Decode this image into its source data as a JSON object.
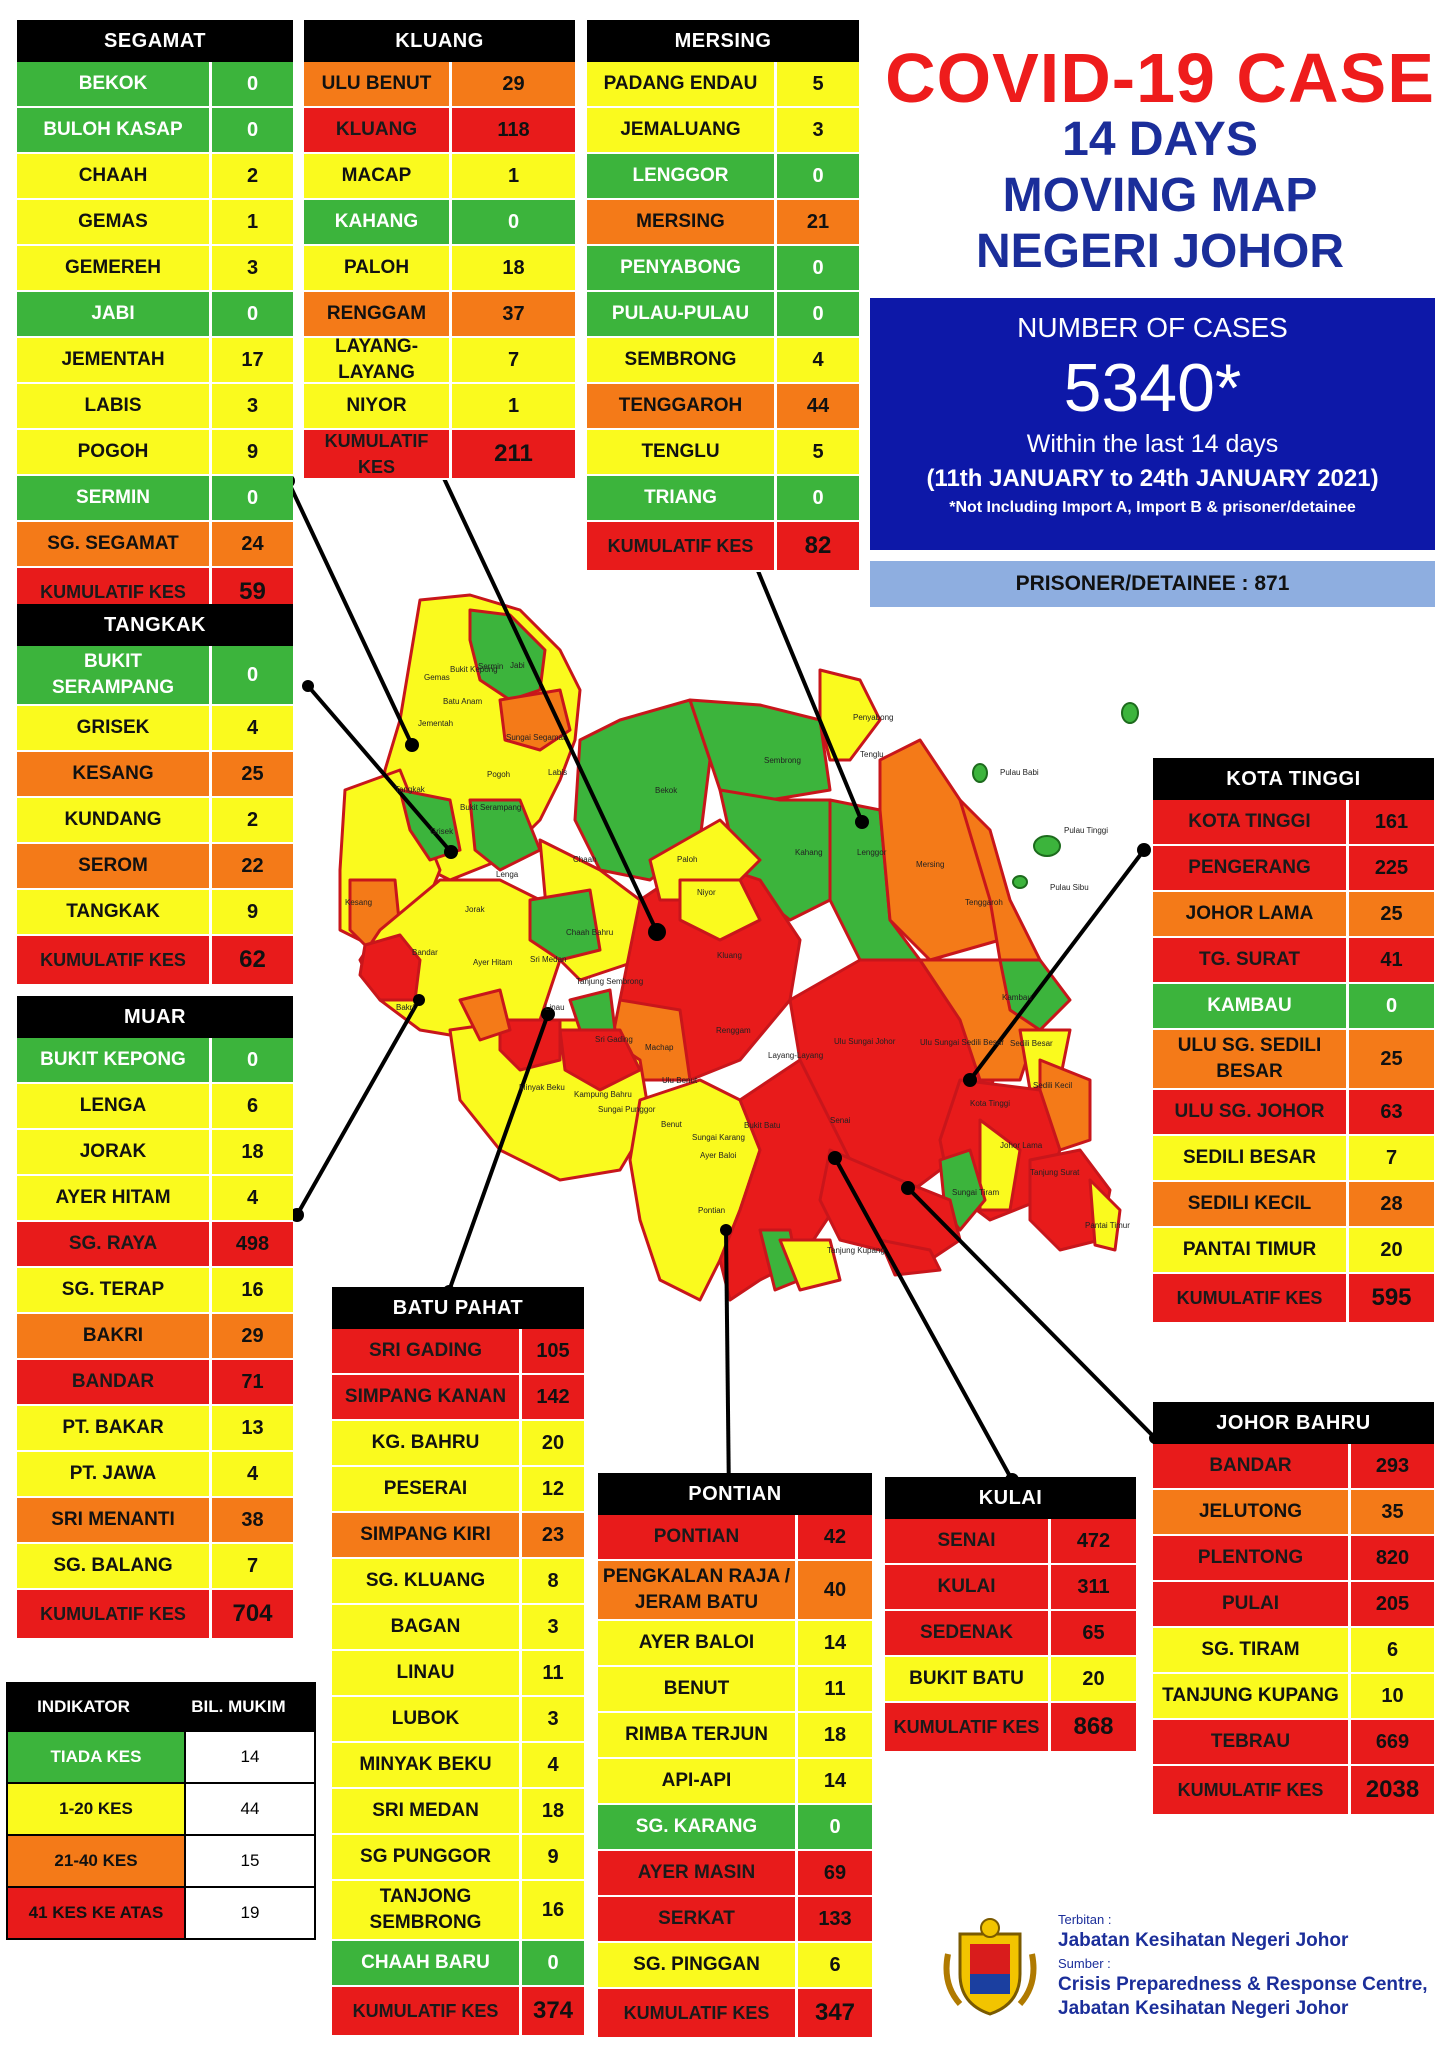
{
  "title_line1": "COVID-19 CASE",
  "title_line2": "14 DAYS",
  "title_line3": "MOVING MAP",
  "title_line4": "NEGERI JOHOR",
  "cases": {
    "label": "NUMBER OF CASES",
    "value": "5340*",
    "period": "Within the last 14 days",
    "range": "(11th JANUARY to 24th JANUARY 2021)",
    "note": "*Not Including Import A, Import B & prisoner/detainee"
  },
  "prisoner": "PRISONER/DETAINEE : 871",
  "colors": {
    "green": "#3cb43c",
    "yellow": "#fafa1e",
    "orange": "#f47a18",
    "red": "#e81b1b"
  },
  "districts": {
    "segamat": {
      "name": "SEGAMAT",
      "rows": [
        {
          "n": "BEKOK",
          "v": "0",
          "c": "green"
        },
        {
          "n": "BULOH KASAP",
          "v": "0",
          "c": "green"
        },
        {
          "n": "CHAAH",
          "v": "2",
          "c": "yellow"
        },
        {
          "n": "GEMAS",
          "v": "1",
          "c": "yellow"
        },
        {
          "n": "GEMEREH",
          "v": "3",
          "c": "yellow"
        },
        {
          "n": "JABI",
          "v": "0",
          "c": "green"
        },
        {
          "n": "JEMENTAH",
          "v": "17",
          "c": "yellow"
        },
        {
          "n": "LABIS",
          "v": "3",
          "c": "yellow"
        },
        {
          "n": "POGOH",
          "v": "9",
          "c": "yellow"
        },
        {
          "n": "SERMIN",
          "v": "0",
          "c": "green"
        },
        {
          "n": "SG. SEGAMAT",
          "v": "24",
          "c": "orange"
        }
      ],
      "total_label": "KUMULATIF KES",
      "total": "59"
    },
    "kluang": {
      "name": "KLUANG",
      "rows": [
        {
          "n": "ULU BENUT",
          "v": "29",
          "c": "orange"
        },
        {
          "n": "KLUANG",
          "v": "118",
          "c": "red"
        },
        {
          "n": "MACAP",
          "v": "1",
          "c": "yellow"
        },
        {
          "n": "KAHANG",
          "v": "0",
          "c": "green"
        },
        {
          "n": "PALOH",
          "v": "18",
          "c": "yellow"
        },
        {
          "n": "RENGGAM",
          "v": "37",
          "c": "orange"
        },
        {
          "n": "LAYANG-LAYANG",
          "v": "7",
          "c": "yellow"
        },
        {
          "n": "NIYOR",
          "v": "1",
          "c": "yellow"
        }
      ],
      "total_label": "KUMULATIF KES",
      "total": "211"
    },
    "mersing": {
      "name": "MERSING",
      "rows": [
        {
          "n": "PADANG ENDAU",
          "v": "5",
          "c": "yellow"
        },
        {
          "n": "JEMALUANG",
          "v": "3",
          "c": "yellow"
        },
        {
          "n": "LENGGOR",
          "v": "0",
          "c": "green"
        },
        {
          "n": "MERSING",
          "v": "21",
          "c": "orange"
        },
        {
          "n": "PENYABONG",
          "v": "0",
          "c": "green"
        },
        {
          "n": "PULAU-PULAU",
          "v": "0",
          "c": "green"
        },
        {
          "n": "SEMBRONG",
          "v": "4",
          "c": "yellow"
        },
        {
          "n": "TENGGAROH",
          "v": "44",
          "c": "orange"
        },
        {
          "n": "TENGLU",
          "v": "5",
          "c": "yellow"
        },
        {
          "n": "TRIANG",
          "v": "0",
          "c": "green"
        }
      ],
      "total_label": "KUMULATIF KES",
      "total": "82"
    },
    "tangkak": {
      "name": "TANGKAK",
      "rows": [
        {
          "n": "BUKIT SERAMPANG",
          "v": "0",
          "c": "green"
        },
        {
          "n": "GRISEK",
          "v": "4",
          "c": "yellow"
        },
        {
          "n": "KESANG",
          "v": "25",
          "c": "orange"
        },
        {
          "n": "KUNDANG",
          "v": "2",
          "c": "yellow"
        },
        {
          "n": "SEROM",
          "v": "22",
          "c": "orange"
        },
        {
          "n": "TANGKAK",
          "v": "9",
          "c": "yellow"
        }
      ],
      "total_label": "KUMULATIF KES",
      "total": "62"
    },
    "muar": {
      "name": "MUAR",
      "rows": [
        {
          "n": "BUKIT KEPONG",
          "v": "0",
          "c": "green"
        },
        {
          "n": "LENGA",
          "v": "6",
          "c": "yellow"
        },
        {
          "n": "JORAK",
          "v": "18",
          "c": "yellow"
        },
        {
          "n": "AYER HITAM",
          "v": "4",
          "c": "yellow"
        },
        {
          "n": "SG. RAYA",
          "v": "498",
          "c": "red"
        },
        {
          "n": "SG. TERAP",
          "v": "16",
          "c": "yellow"
        },
        {
          "n": "BAKRI",
          "v": "29",
          "c": "orange"
        },
        {
          "n": "BANDAR",
          "v": "71",
          "c": "red"
        },
        {
          "n": "PT. BAKAR",
          "v": "13",
          "c": "yellow"
        },
        {
          "n": "PT. JAWA",
          "v": "4",
          "c": "yellow"
        },
        {
          "n": "SRI MENANTI",
          "v": "38",
          "c": "orange"
        },
        {
          "n": "SG. BALANG",
          "v": "7",
          "c": "yellow"
        }
      ],
      "total_label": "KUMULATIF KES",
      "total": "704"
    },
    "batupahat": {
      "name": "BATU PAHAT",
      "rows": [
        {
          "n": "SRI GADING",
          "v": "105",
          "c": "red"
        },
        {
          "n": "SIMPANG KANAN",
          "v": "142",
          "c": "red"
        },
        {
          "n": "KG. BAHRU",
          "v": "20",
          "c": "yellow"
        },
        {
          "n": "PESERAI",
          "v": "12",
          "c": "yellow"
        },
        {
          "n": "SIMPANG KIRI",
          "v": "23",
          "c": "orange"
        },
        {
          "n": "SG. KLUANG",
          "v": "8",
          "c": "yellow"
        },
        {
          "n": "BAGAN",
          "v": "3",
          "c": "yellow"
        },
        {
          "n": "LINAU",
          "v": "11",
          "c": "yellow"
        },
        {
          "n": "LUBOK",
          "v": "3",
          "c": "yellow"
        },
        {
          "n": "MINYAK BEKU",
          "v": "4",
          "c": "yellow"
        },
        {
          "n": "SRI MEDAN",
          "v": "18",
          "c": "yellow"
        },
        {
          "n": "SG PUNGGOR",
          "v": "9",
          "c": "yellow"
        },
        {
          "n": "TANJONG SEMBRONG",
          "v": "16",
          "c": "yellow"
        },
        {
          "n": "CHAAH BARU",
          "v": "0",
          "c": "green"
        }
      ],
      "total_label": "KUMULATIF KES",
      "total": "374"
    },
    "pontian": {
      "name": "PONTIAN",
      "rows": [
        {
          "n": "PONTIAN",
          "v": "42",
          "c": "red"
        },
        {
          "n": "PENGKALAN RAJA / JERAM BATU",
          "v": "40",
          "c": "orange"
        },
        {
          "n": "AYER BALOI",
          "v": "14",
          "c": "yellow"
        },
        {
          "n": "BENUT",
          "v": "11",
          "c": "yellow"
        },
        {
          "n": "RIMBA TERJUN",
          "v": "18",
          "c": "yellow"
        },
        {
          "n": "API-API",
          "v": "14",
          "c": "yellow"
        },
        {
          "n": "SG. KARANG",
          "v": "0",
          "c": "green"
        },
        {
          "n": "AYER MASIN",
          "v": "69",
          "c": "red"
        },
        {
          "n": "SERKAT",
          "v": "133",
          "c": "red"
        },
        {
          "n": "SG. PINGGAN",
          "v": "6",
          "c": "yellow"
        }
      ],
      "total_label": "KUMULATIF KES",
      "total": "347"
    },
    "kulai": {
      "name": "KULAI",
      "rows": [
        {
          "n": "SENAI",
          "v": "472",
          "c": "red"
        },
        {
          "n": "KULAI",
          "v": "311",
          "c": "red"
        },
        {
          "n": "SEDENAK",
          "v": "65",
          "c": "red"
        },
        {
          "n": "BUKIT BATU",
          "v": "20",
          "c": "yellow"
        }
      ],
      "total_label": "KUMULATIF KES",
      "total": "868"
    },
    "kotatinggi": {
      "name": "KOTA TINGGI",
      "rows": [
        {
          "n": "KOTA TINGGI",
          "v": "161",
          "c": "red"
        },
        {
          "n": "PENGERANG",
          "v": "225",
          "c": "red"
        },
        {
          "n": "JOHOR LAMA",
          "v": "25",
          "c": "orange"
        },
        {
          "n": "TG. SURAT",
          "v": "41",
          "c": "red"
        },
        {
          "n": "KAMBAU",
          "v": "0",
          "c": "green"
        },
        {
          "n": "ULU SG. SEDILI BESAR",
          "v": "25",
          "c": "orange"
        },
        {
          "n": "ULU  SG. JOHOR",
          "v": "63",
          "c": "red"
        },
        {
          "n": "SEDILI BESAR",
          "v": "7",
          "c": "yellow"
        },
        {
          "n": "SEDILI KECIL",
          "v": "28",
          "c": "orange"
        },
        {
          "n": "PANTAI TIMUR",
          "v": "20",
          "c": "yellow"
        }
      ],
      "total_label": "KUMULATIF KES",
      "total": "595"
    },
    "johorbahru": {
      "name": "JOHOR BAHRU",
      "rows": [
        {
          "n": "BANDAR",
          "v": "293",
          "c": "red"
        },
        {
          "n": "JELUTONG",
          "v": "35",
          "c": "orange"
        },
        {
          "n": "PLENTONG",
          "v": "820",
          "c": "red"
        },
        {
          "n": "PULAI",
          "v": "205",
          "c": "red"
        },
        {
          "n": "SG. TIRAM",
          "v": "6",
          "c": "yellow"
        },
        {
          "n": "TANJUNG KUPANG",
          "v": "10",
          "c": "yellow"
        },
        {
          "n": "TEBRAU",
          "v": "669",
          "c": "red"
        }
      ],
      "total_label": "KUMULATIF KES",
      "total": "2038"
    }
  },
  "legend": {
    "h1": "INDIKATOR",
    "h2": "BIL. MUKIM",
    "rows": [
      {
        "n": "TIADA KES",
        "v": "14",
        "c": "green"
      },
      {
        "n": "1-20 KES",
        "v": "44",
        "c": "yellow"
      },
      {
        "n": "21-40 KES",
        "v": "15",
        "c": "orange"
      },
      {
        "n": "41 KES KE ATAS",
        "v": "19",
        "c": "red"
      }
    ]
  },
  "footer": {
    "terbitan_label": "Terbitan :",
    "terbitan": "Jabatan Kesihatan Negeri Johor",
    "sumber_label": "Sumber :",
    "sumber1": "Crisis Preparedness & Response Centre,",
    "sumber2": "Jabatan Kesihatan Negeri Johor"
  },
  "map_labels": [
    "Gemas",
    "Bukit Kepong",
    "Jabi",
    "Sermin",
    "Batu Anam",
    "Jementah",
    "Sungai Segamat",
    "Bekok",
    "Pogoh",
    "Labis",
    "Sembrong",
    "Penyabong",
    "Tenglu",
    "Pulau Babi",
    "Pulau Tinggi",
    "Pulau Sibu",
    "Tangkak",
    "Bukit Serampang",
    "Grisek",
    "Lenga",
    "Chaah",
    "Paloh",
    "Kahang",
    "Niyor",
    "Lenggor",
    "Mersing",
    "Jorak",
    "Chaah Bahru",
    "Kluang",
    "Tenggaroh",
    "Kambau",
    "Ayer Hitam",
    "Sri Medan",
    "Tanjung Sembrong",
    "Renggam",
    "Ulu Sungai Sedili Besar",
    "Sedili Besar",
    "Bakri",
    "Linau",
    "Sri Gading",
    "Machap",
    "Ulu Sungai Johor",
    "Kota Tinggi",
    "Sedili Kecil",
    "Layang-Layang",
    "Ulu Benut",
    "Minyak Beku",
    "Kampung Bahru",
    "Sungai Punggor",
    "Senai",
    "Johor Lama",
    "Tanjung Surat",
    "Benut",
    "Sungai Karang",
    "Bukit Batu",
    "Sungai Tiram",
    "Ayer Baloi",
    "Pontian",
    "Pantai Timur",
    "Tanjung Kupang",
    "Kesang",
    "Bandar"
  ]
}
